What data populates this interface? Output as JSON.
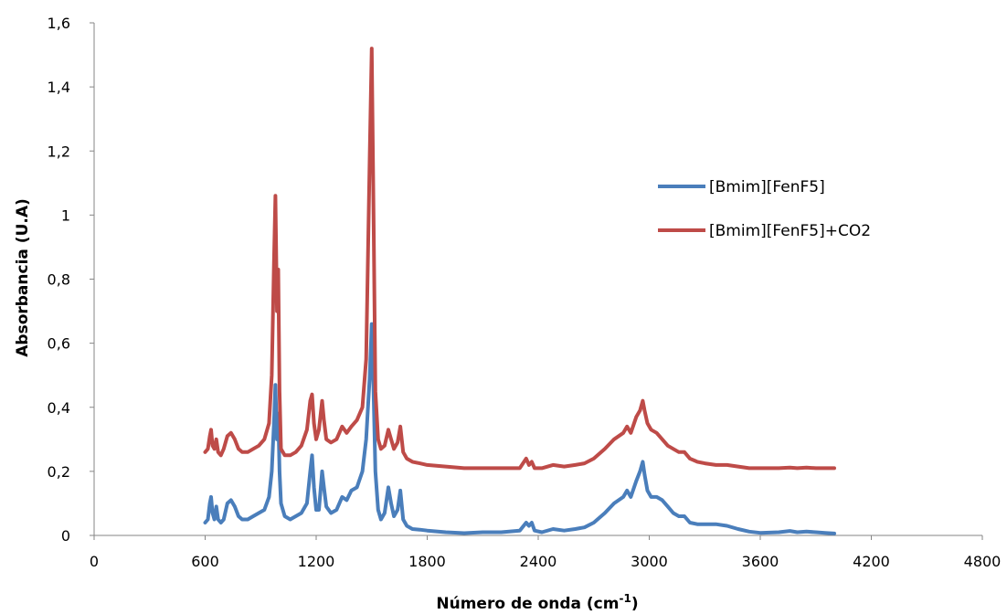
{
  "chart_data": {
    "type": "line",
    "title": "",
    "xlabel": "Número de onda (cm",
    "xlabel_sup": "-1",
    "xlabel_close": ")",
    "ylabel": "Absorbancia  (U.A)",
    "xlim": [
      0,
      4800
    ],
    "ylim": [
      0,
      1.6
    ],
    "x_ticks": [
      0,
      600,
      1200,
      1800,
      2400,
      3000,
      3600,
      4200,
      4800
    ],
    "x_tick_labels": [
      "0",
      "600",
      "1200",
      "1800",
      "2400",
      "3000",
      "3600",
      "4200",
      "4800"
    ],
    "y_ticks": [
      0,
      0.2,
      0.4,
      0.6,
      0.8,
      1,
      1.2,
      1.4,
      1.6
    ],
    "y_tick_labels": [
      "0",
      "0,2",
      "0,4",
      "0,6",
      "0,8",
      "1",
      "1,2",
      "1,4",
      "1,6"
    ],
    "grid": false,
    "legend_position": "right",
    "series": [
      {
        "name": "[Bmim][FenF5]",
        "color": "#4a7ebb",
        "points": [
          [
            600,
            0.04
          ],
          [
            615,
            0.05
          ],
          [
            625,
            0.1
          ],
          [
            632,
            0.12
          ],
          [
            640,
            0.07
          ],
          [
            650,
            0.05
          ],
          [
            660,
            0.09
          ],
          [
            670,
            0.05
          ],
          [
            685,
            0.04
          ],
          [
            700,
            0.05
          ],
          [
            720,
            0.1
          ],
          [
            740,
            0.11
          ],
          [
            760,
            0.09
          ],
          [
            780,
            0.06
          ],
          [
            800,
            0.05
          ],
          [
            830,
            0.05
          ],
          [
            860,
            0.06
          ],
          [
            890,
            0.07
          ],
          [
            920,
            0.08
          ],
          [
            945,
            0.12
          ],
          [
            960,
            0.2
          ],
          [
            972,
            0.35
          ],
          [
            980,
            0.47
          ],
          [
            988,
            0.3
          ],
          [
            995,
            0.38
          ],
          [
            1002,
            0.2
          ],
          [
            1010,
            0.1
          ],
          [
            1030,
            0.06
          ],
          [
            1060,
            0.05
          ],
          [
            1090,
            0.06
          ],
          [
            1120,
            0.07
          ],
          [
            1150,
            0.1
          ],
          [
            1168,
            0.2
          ],
          [
            1178,
            0.25
          ],
          [
            1188,
            0.15
          ],
          [
            1200,
            0.08
          ],
          [
            1215,
            0.08
          ],
          [
            1232,
            0.2
          ],
          [
            1242,
            0.15
          ],
          [
            1255,
            0.09
          ],
          [
            1280,
            0.07
          ],
          [
            1310,
            0.08
          ],
          [
            1340,
            0.12
          ],
          [
            1365,
            0.11
          ],
          [
            1390,
            0.14
          ],
          [
            1420,
            0.15
          ],
          [
            1450,
            0.2
          ],
          [
            1470,
            0.3
          ],
          [
            1490,
            0.5
          ],
          [
            1500,
            0.66
          ],
          [
            1510,
            0.45
          ],
          [
            1520,
            0.2
          ],
          [
            1535,
            0.08
          ],
          [
            1550,
            0.05
          ],
          [
            1570,
            0.07
          ],
          [
            1590,
            0.15
          ],
          [
            1605,
            0.1
          ],
          [
            1620,
            0.06
          ],
          [
            1640,
            0.08
          ],
          [
            1655,
            0.14
          ],
          [
            1670,
            0.05
          ],
          [
            1690,
            0.03
          ],
          [
            1720,
            0.02
          ],
          [
            1760,
            0.018
          ],
          [
            1800,
            0.015
          ],
          [
            1900,
            0.01
          ],
          [
            2000,
            0.007
          ],
          [
            2100,
            0.01
          ],
          [
            2200,
            0.01
          ],
          [
            2300,
            0.015
          ],
          [
            2335,
            0.04
          ],
          [
            2350,
            0.03
          ],
          [
            2365,
            0.04
          ],
          [
            2380,
            0.015
          ],
          [
            2420,
            0.01
          ],
          [
            2480,
            0.02
          ],
          [
            2540,
            0.015
          ],
          [
            2600,
            0.02
          ],
          [
            2650,
            0.025
          ],
          [
            2700,
            0.04
          ],
          [
            2760,
            0.07
          ],
          [
            2810,
            0.1
          ],
          [
            2860,
            0.12
          ],
          [
            2880,
            0.14
          ],
          [
            2900,
            0.12
          ],
          [
            2930,
            0.17
          ],
          [
            2950,
            0.2
          ],
          [
            2965,
            0.23
          ],
          [
            2975,
            0.19
          ],
          [
            2990,
            0.14
          ],
          [
            3010,
            0.12
          ],
          [
            3040,
            0.12
          ],
          [
            3070,
            0.11
          ],
          [
            3100,
            0.09
          ],
          [
            3130,
            0.07
          ],
          [
            3160,
            0.06
          ],
          [
            3190,
            0.06
          ],
          [
            3220,
            0.04
          ],
          [
            3260,
            0.035
          ],
          [
            3300,
            0.035
          ],
          [
            3360,
            0.035
          ],
          [
            3420,
            0.03
          ],
          [
            3480,
            0.02
          ],
          [
            3540,
            0.012
          ],
          [
            3600,
            0.008
          ],
          [
            3700,
            0.01
          ],
          [
            3760,
            0.014
          ],
          [
            3800,
            0.01
          ],
          [
            3850,
            0.012
          ],
          [
            3900,
            0.01
          ],
          [
            3950,
            0.008
          ],
          [
            4000,
            0.006
          ]
        ]
      },
      {
        "name": "[Bmim][FenF5]+CO2",
        "color": "#be4b48",
        "points": [
          [
            600,
            0.26
          ],
          [
            615,
            0.27
          ],
          [
            625,
            0.31
          ],
          [
            632,
            0.33
          ],
          [
            640,
            0.28
          ],
          [
            650,
            0.27
          ],
          [
            660,
            0.3
          ],
          [
            670,
            0.26
          ],
          [
            685,
            0.25
          ],
          [
            700,
            0.27
          ],
          [
            720,
            0.31
          ],
          [
            740,
            0.32
          ],
          [
            760,
            0.3
          ],
          [
            780,
            0.27
          ],
          [
            800,
            0.26
          ],
          [
            830,
            0.26
          ],
          [
            860,
            0.27
          ],
          [
            890,
            0.28
          ],
          [
            920,
            0.3
          ],
          [
            945,
            0.35
          ],
          [
            960,
            0.5
          ],
          [
            972,
            0.85
          ],
          [
            980,
            1.06
          ],
          [
            988,
            0.7
          ],
          [
            995,
            0.83
          ],
          [
            1002,
            0.45
          ],
          [
            1010,
            0.27
          ],
          [
            1030,
            0.25
          ],
          [
            1060,
            0.25
          ],
          [
            1090,
            0.26
          ],
          [
            1120,
            0.28
          ],
          [
            1150,
            0.33
          ],
          [
            1168,
            0.42
          ],
          [
            1178,
            0.44
          ],
          [
            1188,
            0.35
          ],
          [
            1200,
            0.3
          ],
          [
            1215,
            0.33
          ],
          [
            1232,
            0.42
          ],
          [
            1242,
            0.36
          ],
          [
            1255,
            0.3
          ],
          [
            1280,
            0.29
          ],
          [
            1310,
            0.3
          ],
          [
            1340,
            0.34
          ],
          [
            1365,
            0.32
          ],
          [
            1390,
            0.34
          ],
          [
            1420,
            0.36
          ],
          [
            1450,
            0.4
          ],
          [
            1470,
            0.55
          ],
          [
            1490,
            1.2
          ],
          [
            1500,
            1.52
          ],
          [
            1510,
            1.0
          ],
          [
            1520,
            0.45
          ],
          [
            1535,
            0.3
          ],
          [
            1550,
            0.27
          ],
          [
            1570,
            0.28
          ],
          [
            1590,
            0.33
          ],
          [
            1605,
            0.3
          ],
          [
            1620,
            0.27
          ],
          [
            1640,
            0.29
          ],
          [
            1655,
            0.34
          ],
          [
            1670,
            0.26
          ],
          [
            1690,
            0.24
          ],
          [
            1720,
            0.23
          ],
          [
            1760,
            0.225
          ],
          [
            1800,
            0.22
          ],
          [
            1900,
            0.215
          ],
          [
            2000,
            0.21
          ],
          [
            2100,
            0.21
          ],
          [
            2200,
            0.21
          ],
          [
            2300,
            0.21
          ],
          [
            2335,
            0.24
          ],
          [
            2350,
            0.22
          ],
          [
            2365,
            0.23
          ],
          [
            2380,
            0.21
          ],
          [
            2420,
            0.21
          ],
          [
            2480,
            0.22
          ],
          [
            2540,
            0.215
          ],
          [
            2600,
            0.22
          ],
          [
            2650,
            0.225
          ],
          [
            2700,
            0.24
          ],
          [
            2760,
            0.27
          ],
          [
            2810,
            0.3
          ],
          [
            2860,
            0.32
          ],
          [
            2880,
            0.34
          ],
          [
            2900,
            0.32
          ],
          [
            2930,
            0.37
          ],
          [
            2950,
            0.39
          ],
          [
            2965,
            0.42
          ],
          [
            2975,
            0.39
          ],
          [
            2990,
            0.35
          ],
          [
            3010,
            0.33
          ],
          [
            3040,
            0.32
          ],
          [
            3070,
            0.3
          ],
          [
            3100,
            0.28
          ],
          [
            3130,
            0.27
          ],
          [
            3160,
            0.26
          ],
          [
            3190,
            0.26
          ],
          [
            3220,
            0.24
          ],
          [
            3260,
            0.23
          ],
          [
            3300,
            0.225
          ],
          [
            3360,
            0.22
          ],
          [
            3420,
            0.22
          ],
          [
            3480,
            0.215
          ],
          [
            3540,
            0.21
          ],
          [
            3600,
            0.21
          ],
          [
            3700,
            0.21
          ],
          [
            3760,
            0.212
          ],
          [
            3800,
            0.21
          ],
          [
            3850,
            0.212
          ],
          [
            3900,
            0.21
          ],
          [
            3950,
            0.21
          ],
          [
            4000,
            0.21
          ]
        ]
      }
    ]
  }
}
